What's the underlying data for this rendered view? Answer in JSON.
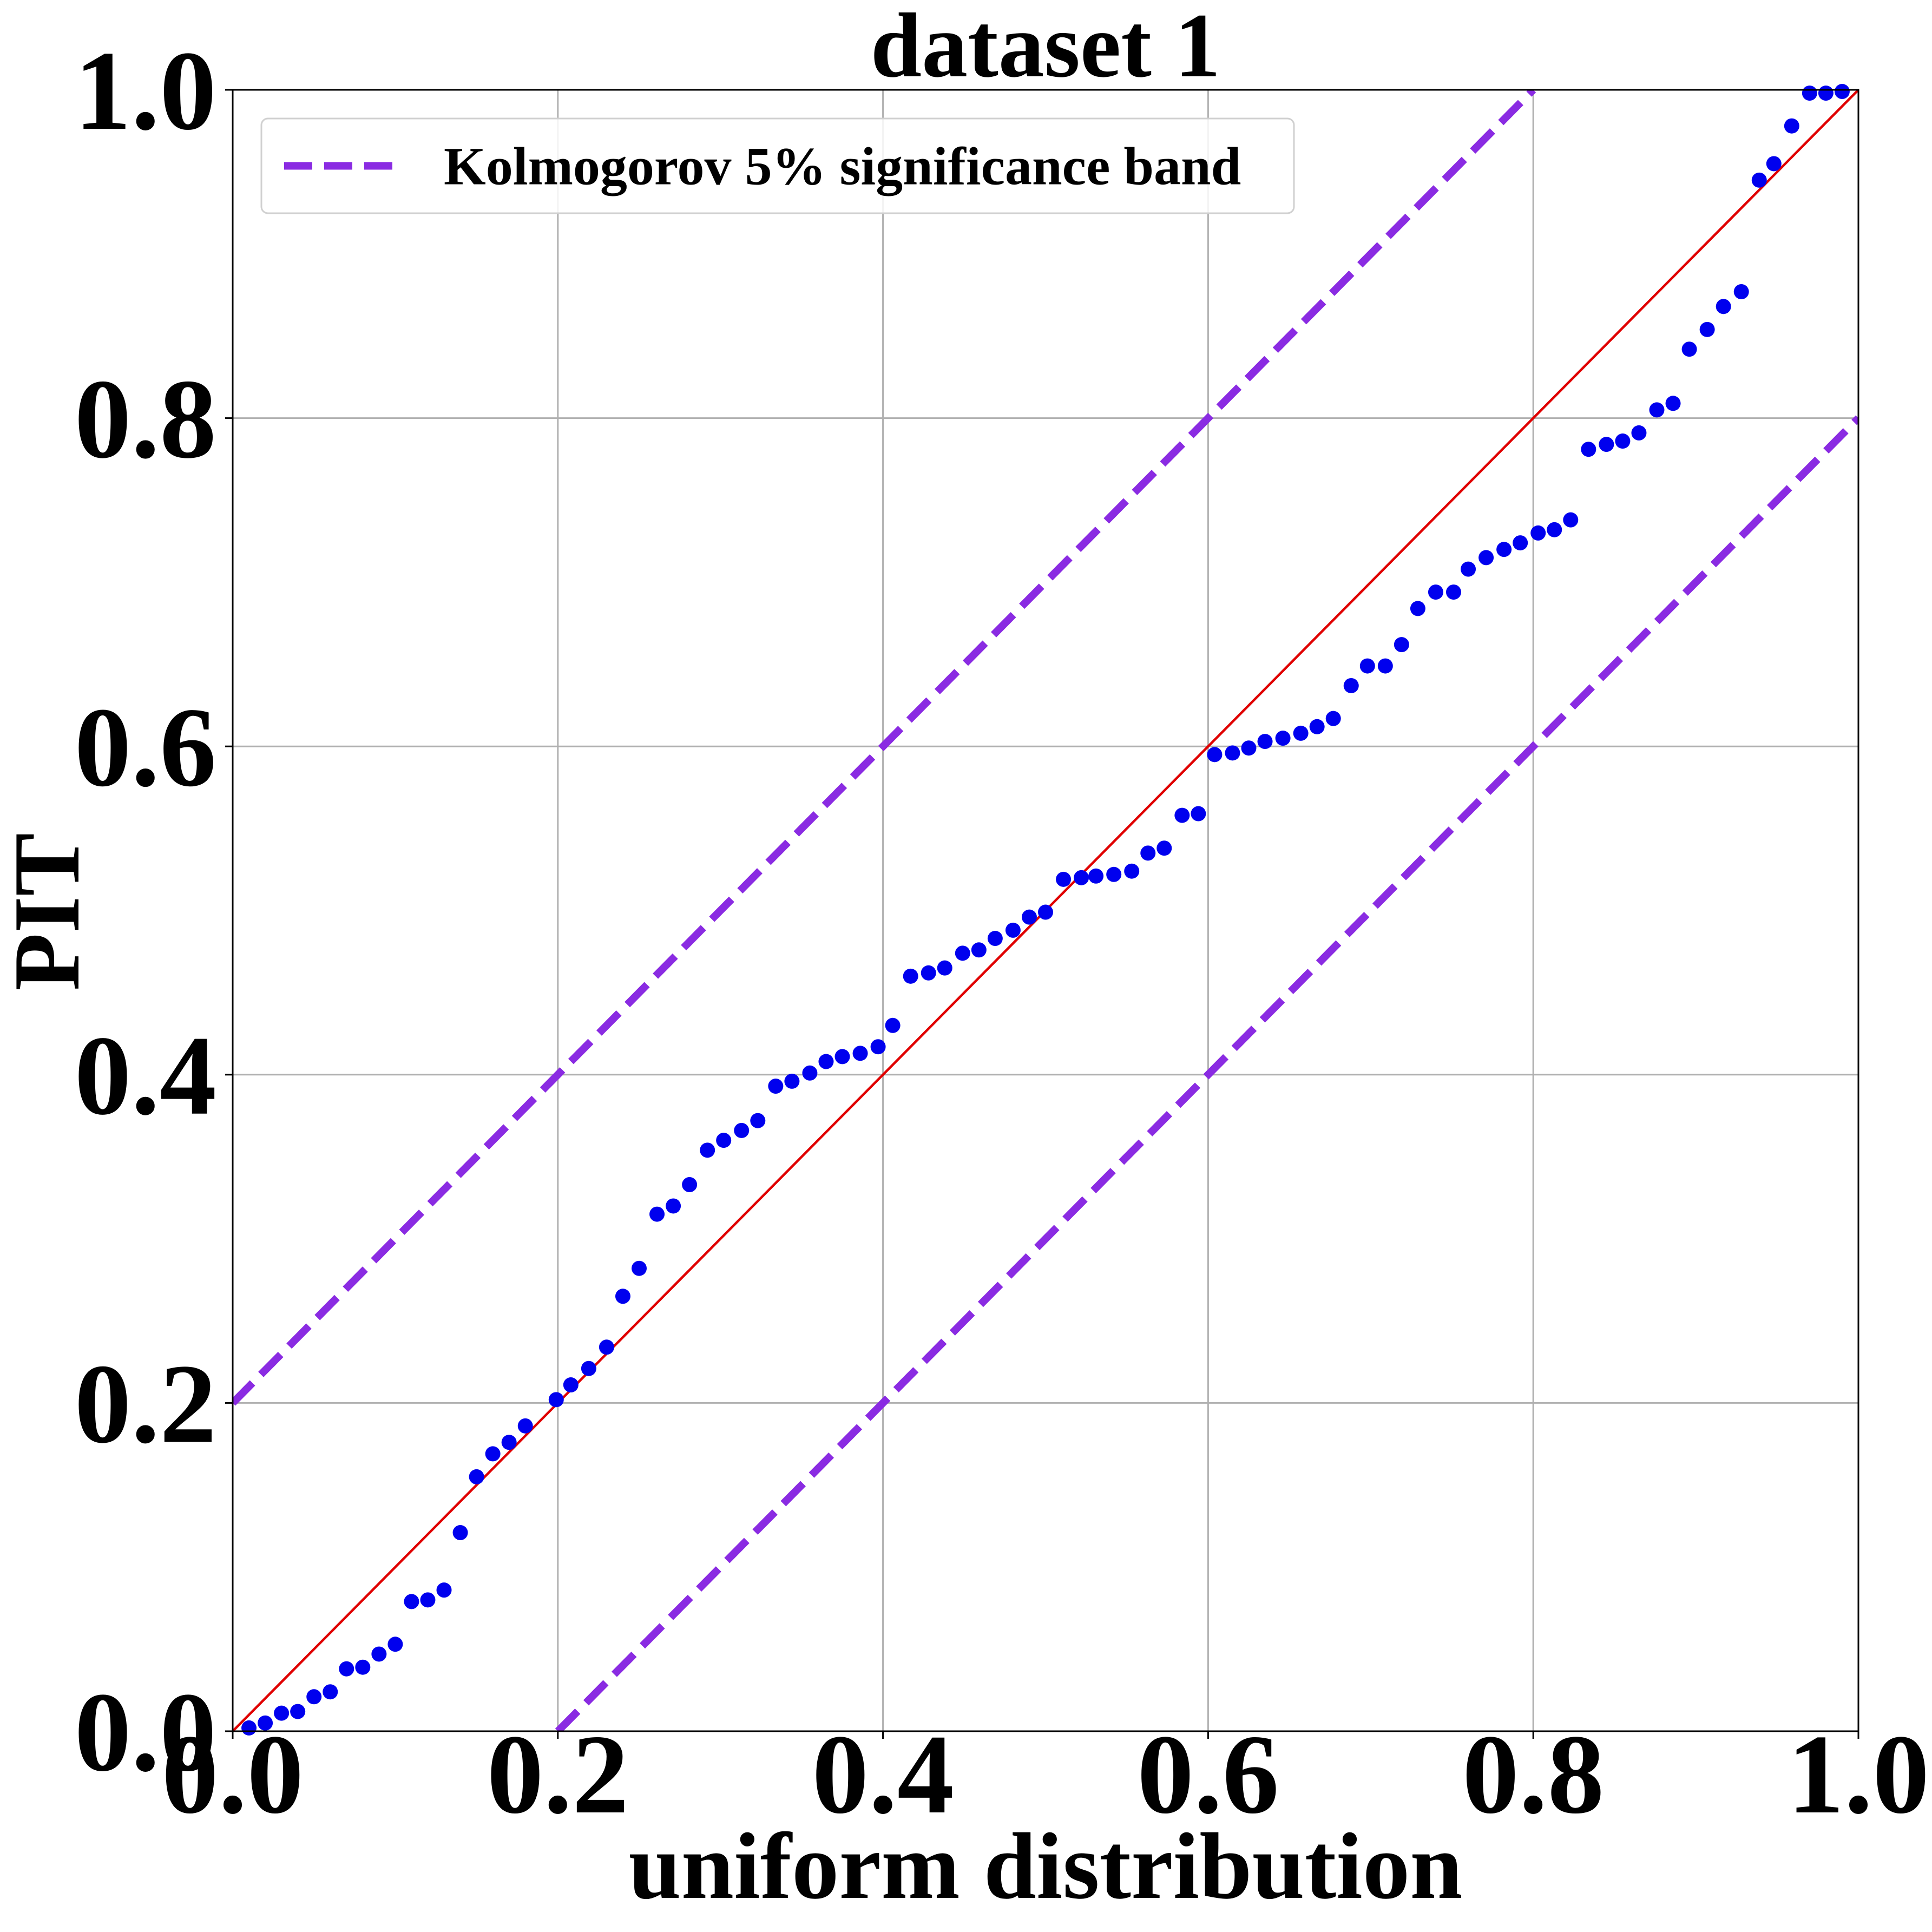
{
  "chart_data": {
    "type": "scatter",
    "title": "dataset 1",
    "x_label": "uniform distribution",
    "y_label": "PIT",
    "xlim": [
      0.0,
      1.0
    ],
    "ylim": [
      0.0,
      1.0
    ],
    "xticks": [
      {
        "value": 0,
        "label": "0.0"
      },
      0.2,
      0.4,
      0.6,
      0.8,
      {
        "value": 1,
        "label": "1.0"
      }
    ],
    "yticks": [
      {
        "value": 0,
        "label": "0.0"
      },
      0.2,
      0.4,
      0.6,
      0.8,
      {
        "value": 1,
        "label": "1.0"
      }
    ],
    "grid": true,
    "legend": "upper left",
    "series": [
      {
        "type": "line",
        "color": "#e00000",
        "x": [
          0,
          1
        ],
        "values": [
          0,
          1
        ]
      },
      {
        "type": "line",
        "name": "Kolmogorov 5% significance band",
        "color": "#8a2be2",
        "dashed": true,
        "x": [
          0,
          0.8,
          null,
          0.2,
          1
        ],
        "values": [
          0.2,
          1,
          null,
          0,
          0.8
        ]
      },
      {
        "type": "scatter",
        "color": "#0000ee",
        "x": [
          0.01,
          0.02,
          0.03,
          0.04,
          0.05,
          0.06,
          0.07,
          0.08,
          0.09,
          0.1,
          0.11,
          0.12,
          0.13,
          0.14,
          0.15,
          0.16,
          0.17,
          0.18,
          0.199,
          0.208,
          0.219,
          0.23,
          0.24,
          0.25,
          0.261,
          0.271,
          0.281,
          0.292,
          0.302,
          0.313,
          0.323,
          0.334,
          0.344,
          0.355,
          0.365,
          0.375,
          0.386,
          0.397,
          0.406,
          0.417,
          0.428,
          0.438,
          0.449,
          0.459,
          0.469,
          0.48,
          0.49,
          0.5,
          0.511,
          0.522,
          0.531,
          0.542,
          0.553,
          0.563,
          0.573,
          0.584,
          0.594,
          0.604,
          0.615,
          0.625,
          0.635,
          0.646,
          0.657,
          0.667,
          0.677,
          0.688,
          0.698,
          0.709,
          0.719,
          0.729,
          0.74,
          0.751,
          0.76,
          0.771,
          0.782,
          0.792,
          0.803,
          0.813,
          0.823,
          0.834,
          0.845,
          0.855,
          0.865,
          0.876,
          0.886,
          0.896,
          0.907,
          0.917,
          0.928,
          0.939,
          0.948,
          0.959,
          0.97,
          0.98,
          0.99
        ],
        "values": [
          0.002,
          0.005,
          0.011,
          0.012,
          0.021,
          0.024,
          0.038,
          0.039,
          0.047,
          0.053,
          0.079,
          0.08,
          0.086,
          0.121,
          0.155,
          0.169,
          0.176,
          0.186,
          0.202,
          0.211,
          0.221,
          0.234,
          0.265,
          0.282,
          0.315,
          0.32,
          0.333,
          0.354,
          0.36,
          0.366,
          0.372,
          0.393,
          0.396,
          0.401,
          0.408,
          0.411,
          0.413,
          0.417,
          0.43,
          0.46,
          0.462,
          0.465,
          0.474,
          0.476,
          0.483,
          0.488,
          0.496,
          0.499,
          0.519,
          0.52,
          0.521,
          0.522,
          0.524,
          0.535,
          0.538,
          0.558,
          0.559,
          0.595,
          0.596,
          0.599,
          0.603,
          0.605,
          0.608,
          0.612,
          0.617,
          0.637,
          0.649,
          0.649,
          0.662,
          0.684,
          0.694,
          0.694,
          0.708,
          0.715,
          0.72,
          0.724,
          0.73,
          0.732,
          0.738,
          0.781,
          0.784,
          0.786,
          0.791,
          0.805,
          0.809,
          0.842,
          0.854,
          0.868,
          0.877,
          0.945,
          0.955,
          0.978,
          0.998,
          0.998,
          0.999
        ]
      }
    ]
  }
}
